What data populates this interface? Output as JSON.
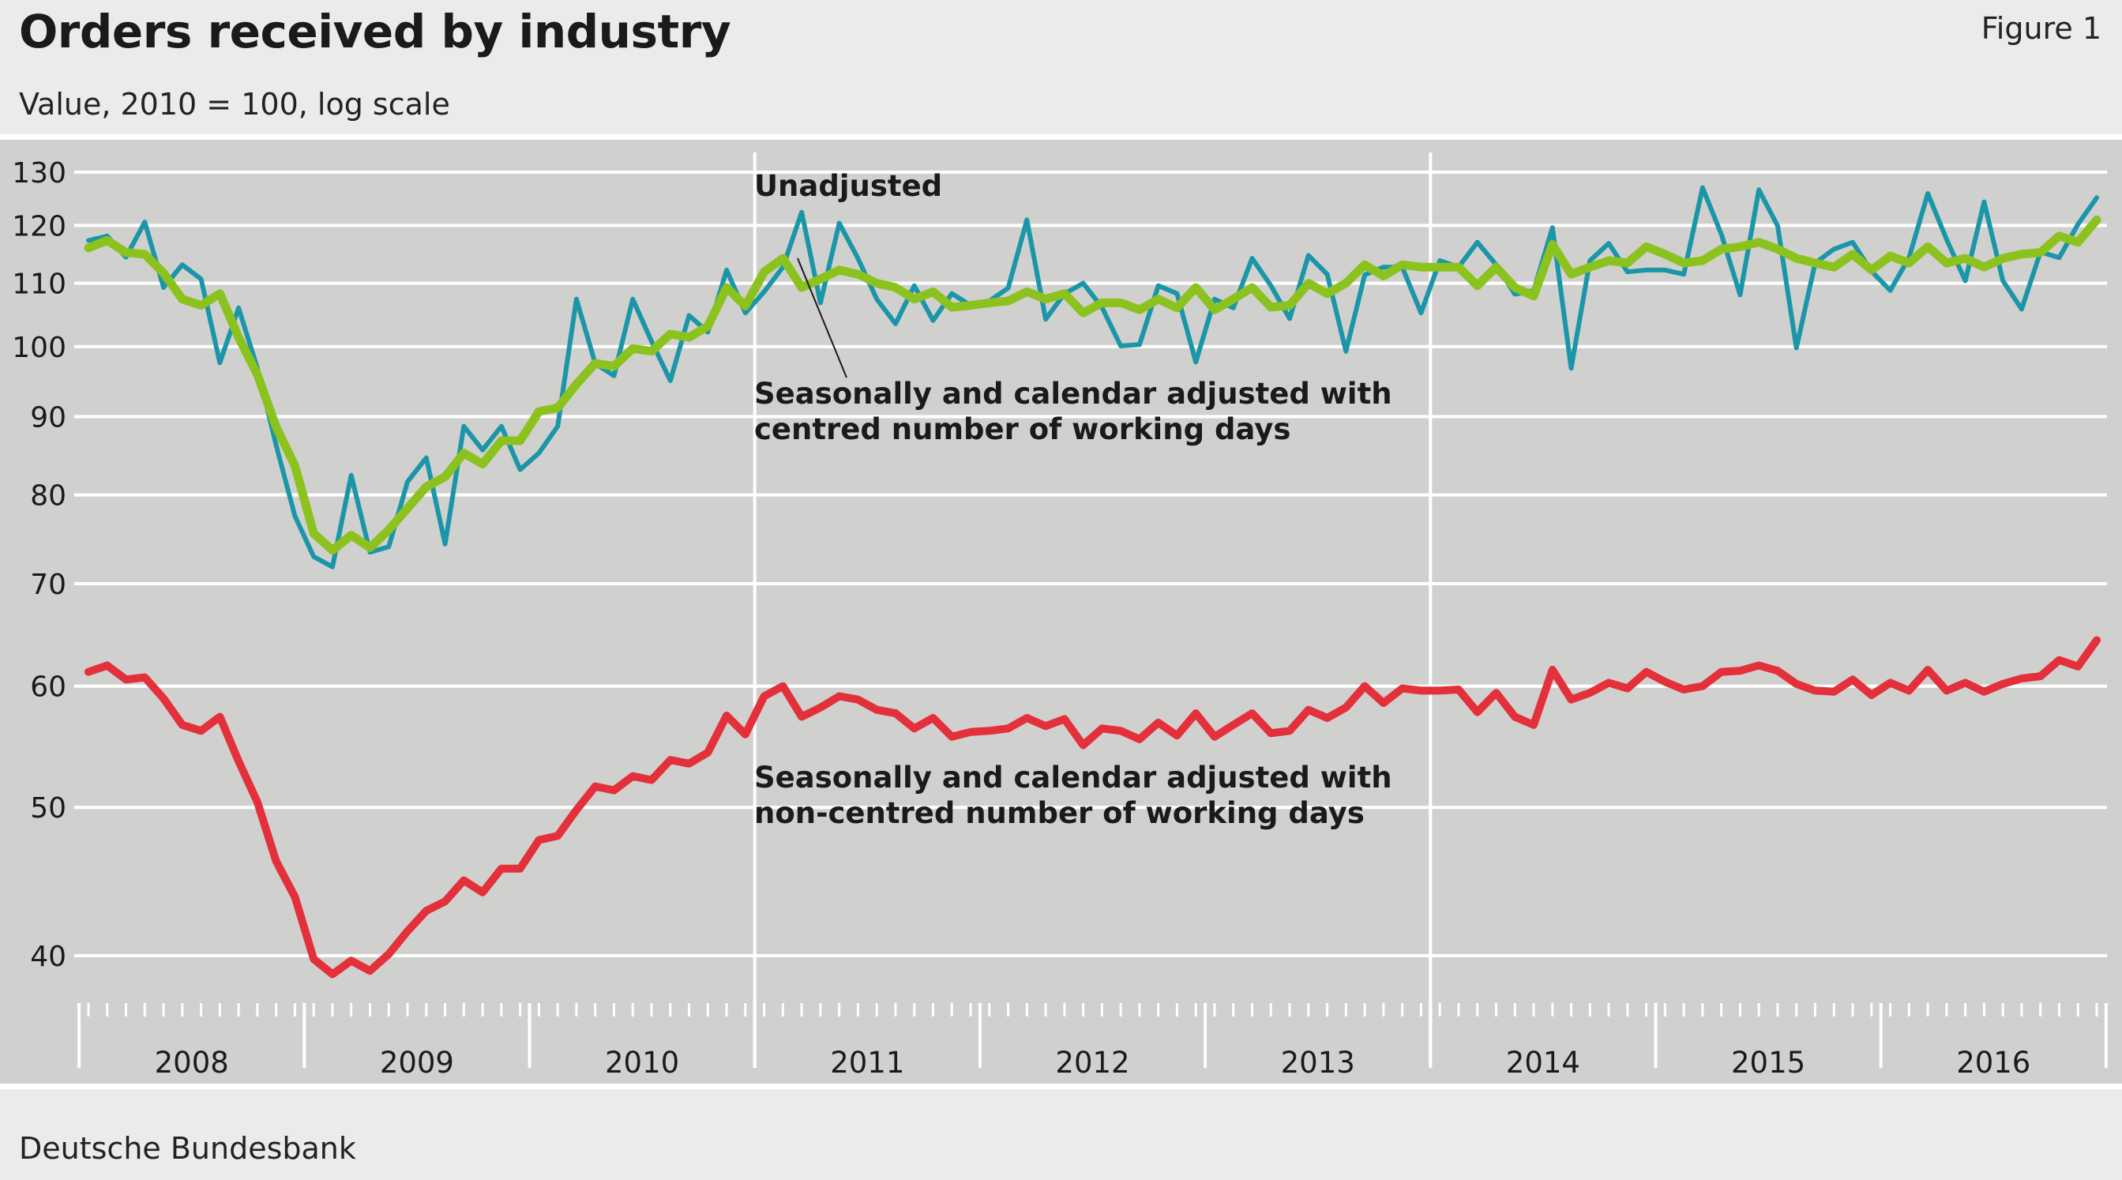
{
  "header": {
    "title": "Orders received by industry",
    "figure_label": "Figure 1",
    "subtitle": "Value, 2010 = 100, log scale"
  },
  "footer": {
    "source": "Deutsche Bundesbank"
  },
  "colors": {
    "plot_bg": "#d0d0cf",
    "gridline": "#ffffff",
    "unadjusted": "#1a96a8",
    "centred": "#8cc21e",
    "noncentred": "#e3303a"
  },
  "chart_data": {
    "type": "line",
    "title": "Orders received by industry",
    "subtitle": "Value, 2010 = 100, log scale",
    "y_scale": "log",
    "ylim": [
      35.5,
      134
    ],
    "y_ticks": [
      40,
      50,
      60,
      70,
      80,
      90,
      100,
      110,
      120,
      130
    ],
    "x_start": "2008-01",
    "x_end": "2016-12",
    "year_labels": [
      "2008",
      "2009",
      "2010",
      "2011",
      "2012",
      "2013",
      "2014",
      "2015",
      "2016"
    ],
    "vertical_markers_year": [
      "2011",
      "2014"
    ],
    "annotations": [
      {
        "id": "ann-unadjusted",
        "text": [
          "Unadjusted"
        ],
        "series": "unadjusted"
      },
      {
        "id": "ann-centred",
        "text": [
          "Seasonally and calendar adjusted with",
          "centred number of working days"
        ],
        "series": "centred"
      },
      {
        "id": "ann-noncentred",
        "text": [
          "Seasonally and calendar adjusted with",
          "non-centred number of working days"
        ],
        "series": "noncentred"
      }
    ],
    "series": [
      {
        "name": "Unadjusted",
        "key": "unadjusted",
        "values": [
          117.3,
          118.1,
          114.4,
          120.6,
          109.3,
          113.1,
          110.7,
          97.6,
          106.0,
          96.8,
          86.2,
          77.5,
          72.9,
          71.8,
          82.4,
          73.4,
          74.0,
          81.6,
          84.6,
          74.3,
          88.7,
          85.6,
          88.7,
          83.1,
          85.2,
          88.7,
          107.4,
          97.5,
          95.7,
          107.4,
          100.8,
          95.0,
          104.8,
          102.2,
          112.2,
          105.2,
          108.6,
          112.7,
          122.4,
          106.8,
          120.4,
          114.2,
          107.4,
          103.5,
          109.6,
          104.0,
          108.3,
          106.4,
          107.1,
          109.2,
          121.0,
          104.2,
          108.3,
          110.0,
          106.1,
          100.1,
          100.3,
          109.6,
          108.3,
          97.7,
          107.4,
          106.0,
          114.2,
          109.6,
          104.3,
          114.7,
          111.5,
          99.3,
          111.4,
          112.7,
          112.7,
          105.2,
          113.8,
          112.7,
          117.0,
          113.1,
          108.2,
          108.8,
          119.6,
          96.8,
          113.8,
          116.8,
          111.9,
          112.2,
          112.2,
          111.5,
          127.0,
          118.4,
          108.1,
          126.6,
          119.9,
          99.8,
          113.4,
          115.8,
          117.0,
          112.0,
          108.8,
          114.3,
          125.9,
          117.5,
          110.4,
          124.3,
          110.4,
          105.8,
          115.3,
          114.3,
          120.2,
          125.1
        ]
      },
      {
        "name": "Seasonally and calendar adjusted with centred number of working days",
        "key": "centred",
        "values": [
          116.0,
          117.3,
          115.2,
          114.9,
          111.7,
          107.4,
          106.4,
          108.3,
          101.4,
          95.9,
          88.6,
          83.6,
          75.5,
          73.6,
          75.3,
          73.9,
          75.9,
          78.4,
          81.0,
          82.2,
          85.2,
          83.8,
          86.8,
          86.8,
          90.7,
          91.2,
          94.5,
          97.5,
          97.1,
          99.7,
          99.3,
          101.9,
          101.4,
          103.1,
          109.3,
          106.3,
          111.9,
          114.2,
          109.3,
          110.7,
          112.2,
          111.5,
          110.0,
          109.3,
          107.4,
          108.6,
          106.1,
          106.4,
          106.8,
          107.1,
          108.6,
          107.4,
          108.3,
          105.2,
          106.8,
          106.8,
          105.7,
          107.4,
          106.0,
          109.3,
          105.7,
          107.4,
          109.3,
          106.1,
          106.4,
          110.0,
          108.3,
          110.0,
          113.1,
          111.2,
          113.1,
          112.7,
          112.7,
          112.7,
          109.6,
          112.7,
          109.3,
          107.9,
          116.6,
          111.5,
          112.7,
          113.8,
          113.4,
          116.2,
          114.9,
          113.4,
          113.8,
          115.8,
          116.2,
          117.0,
          115.8,
          114.2,
          113.4,
          112.7,
          114.9,
          112.2,
          114.6,
          113.4,
          116.2,
          113.4,
          114.2,
          112.7,
          114.2,
          114.9,
          115.2,
          118.1,
          117.0,
          121.0
        ]
      },
      {
        "name": "Seasonally and calendar adjusted with non-centred number of working days",
        "key": "noncentred",
        "values": [
          61.3,
          61.9,
          60.6,
          60.8,
          58.9,
          56.6,
          56.1,
          57.3,
          53.6,
          50.4,
          46.1,
          43.7,
          39.8,
          38.9,
          39.7,
          39.1,
          40.1,
          41.5,
          42.8,
          43.4,
          44.8,
          44.0,
          45.6,
          45.6,
          47.6,
          47.9,
          49.8,
          51.6,
          51.3,
          52.4,
          52.1,
          53.7,
          53.4,
          54.3,
          57.4,
          55.8,
          59.1,
          60.0,
          57.3,
          58.1,
          59.1,
          58.8,
          57.9,
          57.6,
          56.3,
          57.2,
          55.6,
          56.0,
          56.1,
          56.3,
          57.2,
          56.5,
          57.1,
          54.9,
          56.3,
          56.1,
          55.4,
          56.8,
          55.7,
          57.6,
          55.6,
          56.6,
          57.6,
          55.9,
          56.1,
          57.9,
          57.2,
          58.1,
          60.0,
          58.5,
          59.8,
          59.6,
          59.6,
          59.7,
          57.7,
          59.4,
          57.3,
          56.6,
          61.5,
          58.8,
          59.4,
          60.3,
          59.8,
          61.3,
          60.4,
          59.7,
          60.0,
          61.3,
          61.4,
          61.9,
          61.4,
          60.2,
          59.6,
          59.5,
          60.6,
          59.2,
          60.3,
          59.6,
          61.5,
          59.6,
          60.3,
          59.5,
          60.2,
          60.7,
          60.9,
          62.4,
          61.8,
          64.3
        ]
      }
    ]
  }
}
